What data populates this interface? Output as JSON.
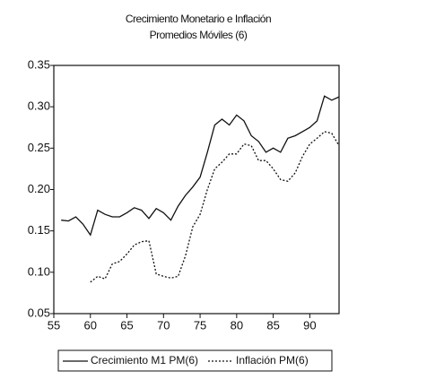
{
  "chart_data": {
    "type": "line",
    "title": "Crecimiento Monetario e Inflación",
    "subtitle": "Promedios Móviles (6)",
    "xlim": [
      55,
      94
    ],
    "xticks": [
      55,
      60,
      65,
      70,
      75,
      80,
      85,
      90
    ],
    "ylim": [
      0.05,
      0.35
    ],
    "yticks": [
      0.05,
      {
        "value": 0.1,
        "label": "0.10"
      },
      0.15,
      {
        "value": 0.2,
        "label": "0.20"
      },
      0.25,
      {
        "value": 0.3,
        "label": "0.30"
      },
      0.35
    ],
    "series": [
      {
        "name": "Crecimiento M1 PM(6)",
        "color": "#111111",
        "dash": false,
        "x": [
          56,
          57,
          58,
          59,
          60,
          61,
          62,
          63,
          64,
          65,
          66,
          67,
          68,
          69,
          70,
          71,
          72,
          73,
          74,
          75,
          76,
          77,
          78,
          79,
          80,
          81,
          82,
          83,
          84,
          85,
          86,
          87,
          88,
          89,
          90,
          91,
          92,
          93,
          94
        ],
        "values": [
          0.163,
          0.162,
          0.167,
          0.158,
          0.145,
          0.175,
          0.17,
          0.167,
          0.167,
          0.172,
          0.178,
          0.175,
          0.165,
          0.177,
          0.172,
          0.163,
          0.18,
          0.193,
          0.203,
          0.215,
          0.245,
          0.278,
          0.285,
          0.278,
          0.29,
          0.283,
          0.265,
          0.258,
          0.245,
          0.25,
          0.245,
          0.262,
          0.265,
          0.27,
          0.275,
          0.283,
          0.313,
          0.308,
          0.312
        ]
      },
      {
        "name": "Inflación PM(6)",
        "color": "#111111",
        "dash": true,
        "x": [
          60,
          61,
          62,
          63,
          64,
          65,
          66,
          67,
          68,
          69,
          70,
          71,
          72,
          73,
          74,
          75,
          76,
          77,
          78,
          79,
          80,
          81,
          82,
          83,
          84,
          85,
          86,
          87,
          88,
          89,
          90,
          91,
          92,
          93,
          94
        ],
        "values": [
          0.088,
          0.095,
          0.092,
          0.11,
          0.113,
          0.122,
          0.133,
          0.137,
          0.138,
          0.098,
          0.095,
          0.093,
          0.095,
          0.12,
          0.155,
          0.17,
          0.2,
          0.225,
          0.233,
          0.243,
          0.243,
          0.255,
          0.253,
          0.235,
          0.235,
          0.225,
          0.212,
          0.21,
          0.22,
          0.24,
          0.255,
          0.262,
          0.27,
          0.268,
          0.253
        ]
      }
    ]
  }
}
